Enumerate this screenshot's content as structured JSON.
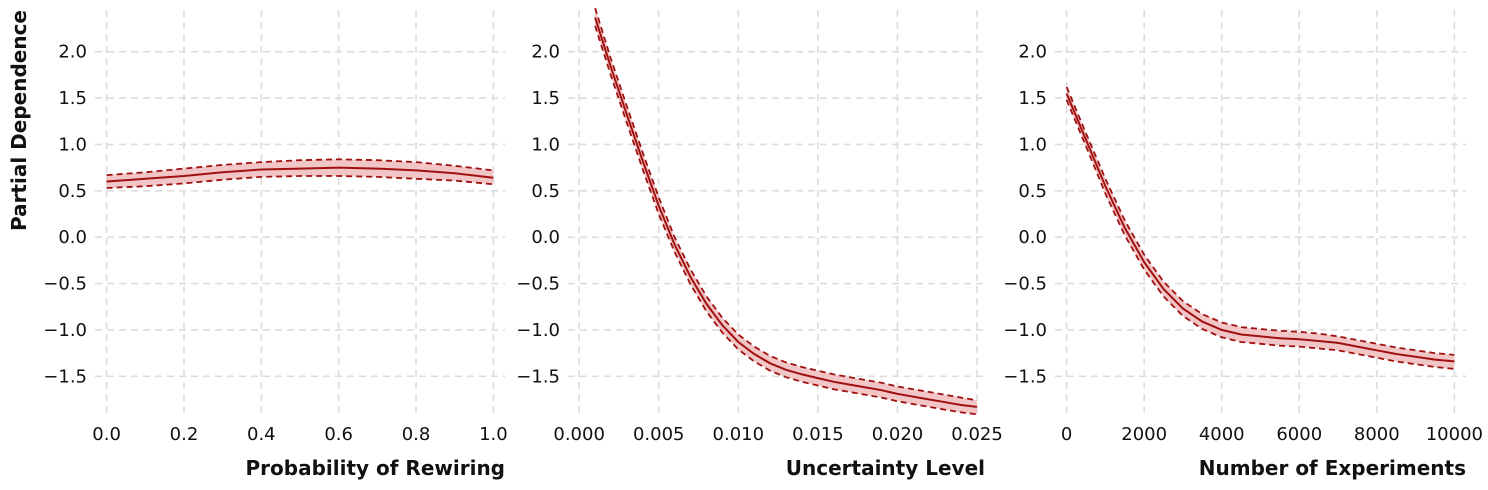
{
  "colors": {
    "line": "#a01010",
    "band": "#f2c6c6",
    "grid": "#dddddd"
  },
  "chart_data": [
    {
      "type": "line",
      "xlabel": "Probability of Rewiring",
      "ylabel": "Partial Dependence",
      "xlim": [
        -0.03,
        1.03
      ],
      "ylim": [
        -1.95,
        2.45
      ],
      "xticks": [
        0.0,
        0.2,
        0.4,
        0.6,
        0.8,
        1.0
      ],
      "xtick_labels": [
        "0.0",
        "0.2",
        "0.4",
        "0.6",
        "0.8",
        "1.0"
      ],
      "yticks": [
        -1.5,
        -1.0,
        -0.5,
        0.0,
        0.5,
        1.0,
        1.5,
        2.0
      ],
      "ytick_labels": [
        "−1.5",
        "−1.0",
        "−0.5",
        "0.0",
        "0.5",
        "1.0",
        "1.5",
        "2.0"
      ],
      "grid": true,
      "x": [
        0.0,
        0.1,
        0.2,
        0.3,
        0.4,
        0.5,
        0.6,
        0.7,
        0.8,
        0.9,
        1.0
      ],
      "mean": [
        0.6,
        0.63,
        0.66,
        0.7,
        0.73,
        0.74,
        0.75,
        0.74,
        0.72,
        0.69,
        0.64
      ],
      "upper": [
        0.67,
        0.7,
        0.74,
        0.78,
        0.81,
        0.83,
        0.84,
        0.83,
        0.81,
        0.77,
        0.72
      ],
      "lower": [
        0.53,
        0.55,
        0.58,
        0.62,
        0.65,
        0.66,
        0.66,
        0.65,
        0.63,
        0.61,
        0.57
      ]
    },
    {
      "type": "line",
      "xlabel": "Uncertainty Level",
      "ylabel": "",
      "xlim": [
        -0.0007,
        0.0255
      ],
      "ylim": [
        -1.95,
        2.45
      ],
      "xticks": [
        0.0,
        0.005,
        0.01,
        0.015,
        0.02,
        0.025
      ],
      "xtick_labels": [
        "0.000",
        "0.005",
        "0.010",
        "0.015",
        "0.020",
        "0.025"
      ],
      "yticks": [
        -1.5,
        -1.0,
        -0.5,
        0.0,
        0.5,
        1.0,
        1.5,
        2.0
      ],
      "ytick_labels": [
        "−1.5",
        "−1.0",
        "−0.5",
        "0.0",
        "0.5",
        "1.0",
        "1.5",
        "2.0"
      ],
      "grid": true,
      "x": [
        0.001,
        0.002,
        0.003,
        0.004,
        0.005,
        0.006,
        0.007,
        0.008,
        0.009,
        0.01,
        0.011,
        0.012,
        0.013,
        0.014,
        0.015,
        0.016,
        0.017,
        0.018,
        0.019,
        0.02,
        0.021,
        0.022,
        0.023,
        0.024,
        0.025
      ],
      "mean": [
        2.37,
        1.83,
        1.32,
        0.82,
        0.34,
        -0.08,
        -0.43,
        -0.72,
        -0.95,
        -1.13,
        -1.26,
        -1.36,
        -1.43,
        -1.48,
        -1.52,
        -1.56,
        -1.59,
        -1.62,
        -1.65,
        -1.69,
        -1.72,
        -1.75,
        -1.78,
        -1.81,
        -1.83
      ],
      "upper": [
        2.47,
        1.92,
        1.41,
        0.91,
        0.43,
        0.0,
        -0.35,
        -0.64,
        -0.87,
        -1.05,
        -1.18,
        -1.28,
        -1.35,
        -1.4,
        -1.44,
        -1.48,
        -1.51,
        -1.54,
        -1.57,
        -1.61,
        -1.64,
        -1.67,
        -1.7,
        -1.73,
        -1.76
      ],
      "lower": [
        2.28,
        1.74,
        1.23,
        0.73,
        0.25,
        -0.16,
        -0.51,
        -0.8,
        -1.03,
        -1.21,
        -1.34,
        -1.44,
        -1.51,
        -1.56,
        -1.6,
        -1.64,
        -1.67,
        -1.7,
        -1.73,
        -1.77,
        -1.8,
        -1.83,
        -1.86,
        -1.89,
        -1.91
      ]
    },
    {
      "type": "line",
      "xlabel": "Number of Experiments",
      "ylabel": "",
      "xlim": [
        -300,
        10300
      ],
      "ylim": [
        -1.95,
        2.45
      ],
      "xticks": [
        0,
        2000,
        4000,
        6000,
        8000,
        10000
      ],
      "xtick_labels": [
        "0",
        "2000",
        "4000",
        "6000",
        "8000",
        "10000"
      ],
      "yticks": [
        -1.5,
        -1.0,
        -0.5,
        0.0,
        0.5,
        1.0,
        1.5,
        2.0
      ],
      "ytick_labels": [
        "−1.5",
        "−1.0",
        "−0.5",
        "0.0",
        "0.5",
        "1.0",
        "1.5",
        "2.0"
      ],
      "grid": true,
      "x": [
        0,
        500,
        1000,
        1500,
        2000,
        2500,
        3000,
        3500,
        4000,
        4500,
        5000,
        5500,
        6000,
        6500,
        7000,
        7500,
        8000,
        8500,
        9000,
        9500,
        10000
      ],
      "mean": [
        1.55,
        1.05,
        0.55,
        0.1,
        -0.27,
        -0.56,
        -0.77,
        -0.91,
        -1.0,
        -1.05,
        -1.07,
        -1.09,
        -1.1,
        -1.12,
        -1.14,
        -1.18,
        -1.22,
        -1.26,
        -1.29,
        -1.32,
        -1.34
      ],
      "upper": [
        1.62,
        1.12,
        0.63,
        0.18,
        -0.19,
        -0.48,
        -0.69,
        -0.83,
        -0.92,
        -0.97,
        -0.99,
        -1.01,
        -1.02,
        -1.04,
        -1.07,
        -1.11,
        -1.15,
        -1.19,
        -1.22,
        -1.25,
        -1.27
      ],
      "lower": [
        1.48,
        0.98,
        0.47,
        0.02,
        -0.35,
        -0.64,
        -0.85,
        -0.99,
        -1.08,
        -1.13,
        -1.15,
        -1.17,
        -1.18,
        -1.2,
        -1.22,
        -1.26,
        -1.3,
        -1.34,
        -1.37,
        -1.4,
        -1.42
      ]
    }
  ]
}
